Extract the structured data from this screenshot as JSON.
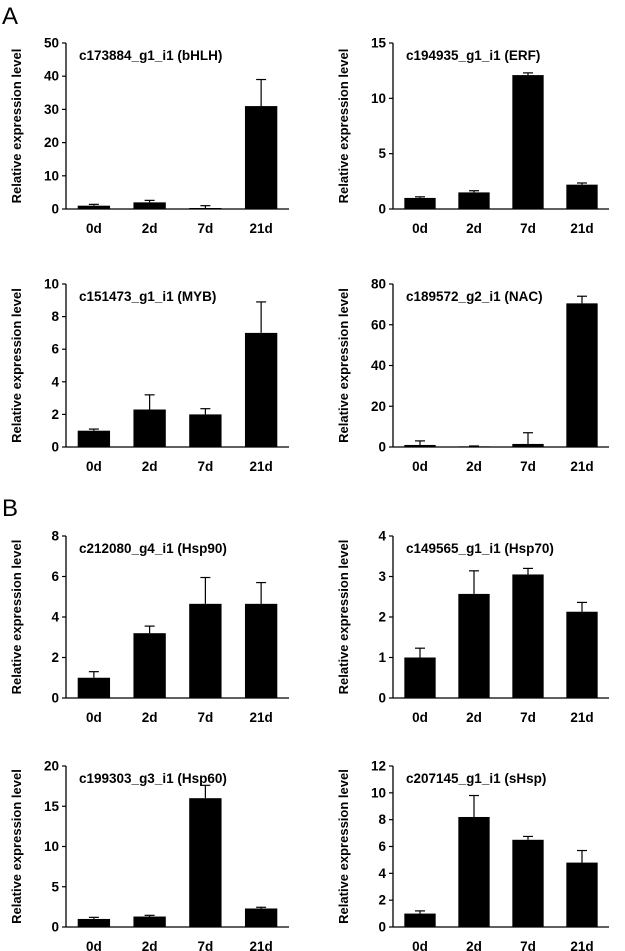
{
  "figure": {
    "panel_labels": [
      "A",
      "B"
    ]
  },
  "chart_data": [
    {
      "type": "bar",
      "title": "c173884_g1_i1 (bHLH)",
      "ylabel": "Relative expression level",
      "xlabel": "",
      "categories": [
        "0d",
        "2d",
        "7d",
        "21d"
      ],
      "values": [
        1.0,
        2.0,
        0.3,
        31.0
      ],
      "errors": [
        0.4,
        0.6,
        0.7,
        8.0
      ],
      "ylim": [
        0,
        50
      ],
      "yticks": [
        0,
        10,
        20,
        30,
        40,
        50
      ],
      "color": "#000000"
    },
    {
      "type": "bar",
      "title": "c194935_g1_i1 (ERF)",
      "ylabel": "Relative expression level",
      "xlabel": "",
      "categories": [
        "0d",
        "2d",
        "7d",
        "21d"
      ],
      "values": [
        1.0,
        1.5,
        12.1,
        2.2
      ],
      "errors": [
        0.1,
        0.15,
        0.2,
        0.15
      ],
      "ylim": [
        0,
        15
      ],
      "yticks": [
        0,
        5,
        10,
        15
      ],
      "color": "#000000"
    },
    {
      "type": "bar",
      "title": "c151473_g1_i1 (MYB)",
      "ylabel": "Relative expression level",
      "xlabel": "",
      "categories": [
        "0d",
        "2d",
        "7d",
        "21d"
      ],
      "values": [
        1.0,
        2.3,
        2.0,
        7.0
      ],
      "errors": [
        0.1,
        0.9,
        0.35,
        1.9
      ],
      "ylim": [
        0,
        10
      ],
      "yticks": [
        0,
        2,
        4,
        6,
        8,
        10
      ],
      "color": "#000000"
    },
    {
      "type": "bar",
      "title": "c189572_g2_i1 (NAC)",
      "ylabel": "Relative expression level",
      "xlabel": "",
      "categories": [
        "0d",
        "2d",
        "7d",
        "21d"
      ],
      "values": [
        1.0,
        0.3,
        1.5,
        70.5
      ],
      "errors": [
        2.0,
        0.2,
        5.5,
        3.5
      ],
      "ylim": [
        0,
        80
      ],
      "yticks": [
        0,
        20,
        40,
        60,
        80
      ],
      "color": "#000000"
    },
    {
      "type": "bar",
      "title": "c212080_g4_i1 (Hsp90)",
      "ylabel": "Relative expression level",
      "xlabel": "",
      "categories": [
        "0d",
        "2d",
        "7d",
        "21d"
      ],
      "values": [
        1.0,
        3.2,
        4.65,
        4.65
      ],
      "errors": [
        0.3,
        0.35,
        1.3,
        1.05
      ],
      "ylim": [
        0,
        8
      ],
      "yticks": [
        0,
        2,
        4,
        6,
        8
      ],
      "color": "#000000"
    },
    {
      "type": "bar",
      "title": "c149565_g1_i1 (Hsp70)",
      "ylabel": "Relative expression level",
      "xlabel": "",
      "categories": [
        "0d",
        "2d",
        "7d",
        "21d"
      ],
      "values": [
        1.0,
        2.57,
        3.05,
        2.13
      ],
      "errors": [
        0.23,
        0.57,
        0.15,
        0.23
      ],
      "ylim": [
        0,
        4
      ],
      "yticks": [
        0,
        1,
        2,
        3,
        4
      ],
      "color": "#000000"
    },
    {
      "type": "bar",
      "title": "c199303_g3_i1 (Hsp60)",
      "ylabel": "Relative expression level",
      "xlabel": "",
      "categories": [
        "0d",
        "2d",
        "7d",
        "21d"
      ],
      "values": [
        1.0,
        1.3,
        16.0,
        2.3
      ],
      "errors": [
        0.2,
        0.15,
        1.6,
        0.15
      ],
      "ylim": [
        0,
        20
      ],
      "yticks": [
        0,
        5,
        10,
        15,
        20
      ],
      "color": "#000000"
    },
    {
      "type": "bar",
      "title": "c207145_g1_i1 (sHsp)",
      "ylabel": "Relative expression level",
      "xlabel": "",
      "categories": [
        "0d",
        "2d",
        "7d",
        "21d"
      ],
      "values": [
        1.0,
        8.2,
        6.5,
        4.8
      ],
      "errors": [
        0.2,
        1.6,
        0.25,
        0.9
      ],
      "ylim": [
        0,
        12
      ],
      "yticks": [
        0,
        2,
        4,
        6,
        8,
        10,
        12
      ],
      "color": "#000000"
    }
  ]
}
